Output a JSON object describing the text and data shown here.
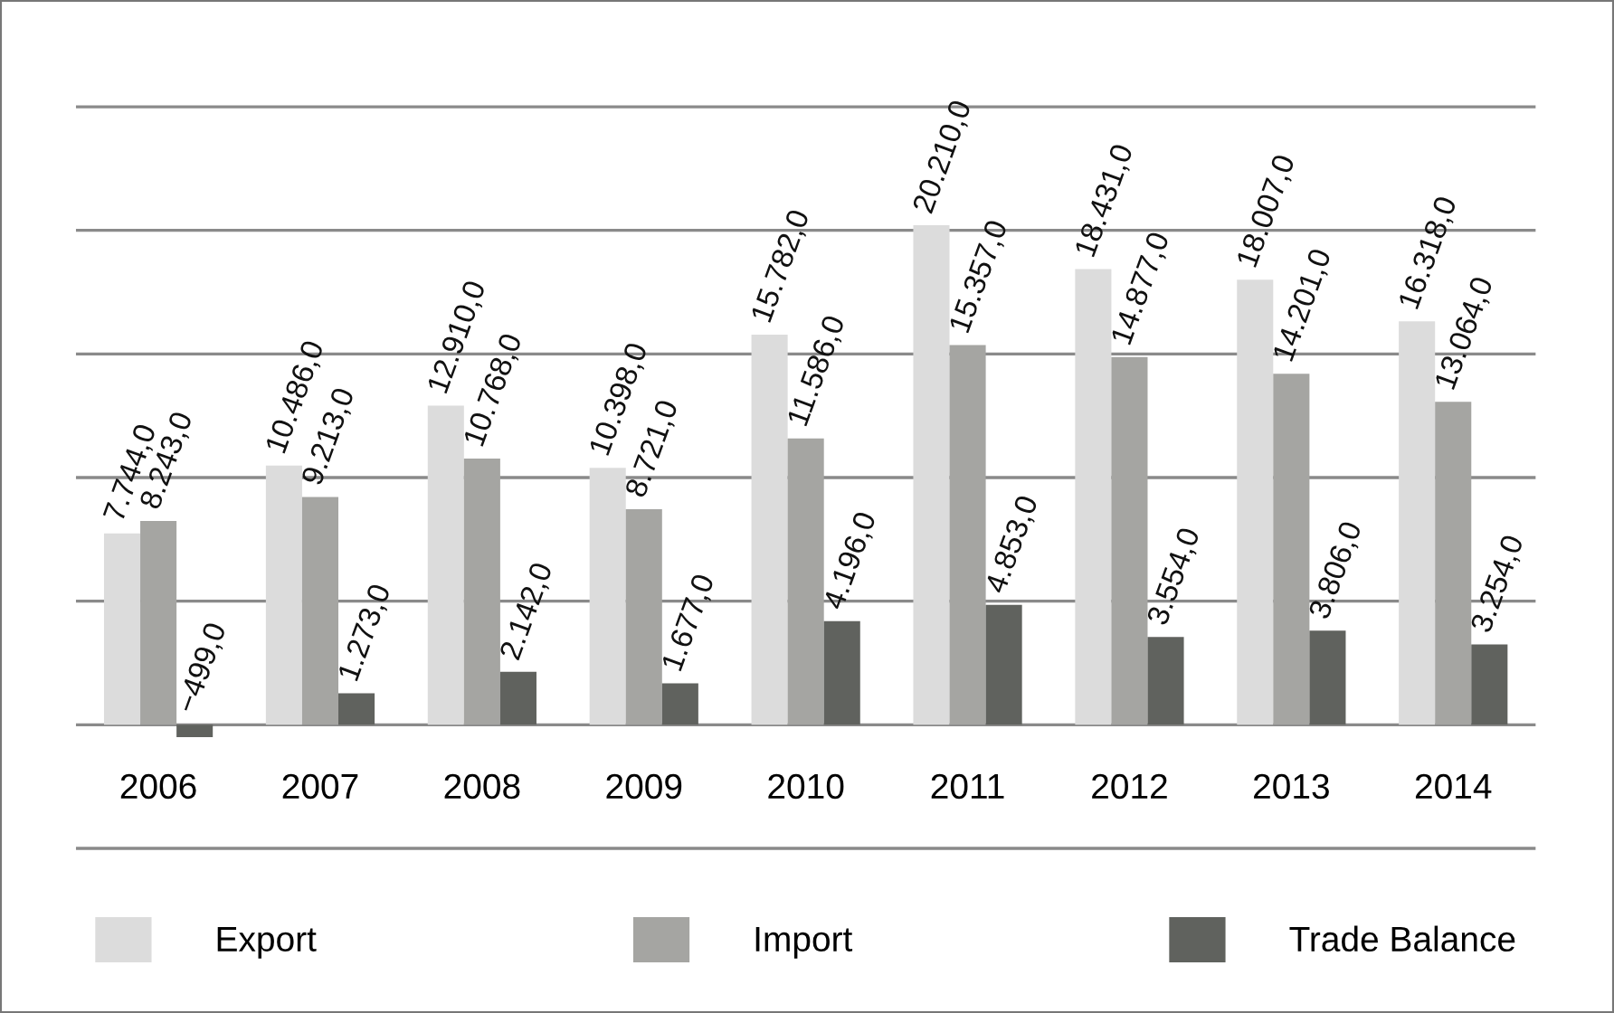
{
  "chart_data": {
    "type": "bar",
    "categories": [
      "2006",
      "2007",
      "2008",
      "2009",
      "2010",
      "2011",
      "2012",
      "2013",
      "2014"
    ],
    "series": [
      {
        "name": "Export",
        "color": "#dcdcdc",
        "values": [
          7744,
          10486,
          12910,
          10398,
          15782,
          20210,
          18431,
          18007,
          16318
        ],
        "value_labels": [
          "7.744,0",
          "10.486,0",
          "12.910,0",
          "10.398,0",
          "15.782,0",
          "20.210,0",
          "18.431,0",
          "18.007,0",
          "16.318,0"
        ]
      },
      {
        "name": "Import",
        "color": "#a5a5a2",
        "values": [
          8243,
          9213,
          10768,
          8721,
          11586,
          15357,
          14877,
          14201,
          13064
        ],
        "value_labels": [
          "8.243,0",
          "9.213,0",
          "10.768,0",
          "8.721,0",
          "11.586,0",
          "15.357,0",
          "14.877,0",
          "14.201,0",
          "13.064,0"
        ]
      },
      {
        "name": "Trade Balance",
        "color": "#60625e",
        "values": [
          -499,
          1273,
          2142,
          1677,
          4196,
          4853,
          3554,
          3806,
          3254
        ],
        "value_labels": [
          "−499,0",
          "1.273,0",
          "2.142,0",
          "1.677,0",
          "4.196,0",
          "4.853,0",
          "3.554,0",
          "3.806,0",
          "3.254,0"
        ]
      }
    ],
    "ylim": [
      -5000,
      25000
    ],
    "yticks": [
      {
        "value": -5000,
        "label": null
      },
      {
        "value": 0,
        "label": null
      },
      {
        "value": 5000,
        "label": null
      },
      {
        "value": 10000,
        "label": null
      },
      {
        "value": 15000,
        "label": null
      },
      {
        "value": 20000,
        "label": null
      },
      {
        "value": 25000,
        "label": null
      }
    ],
    "grid": "y",
    "legend": "bottom",
    "tick_labels": "x"
  }
}
